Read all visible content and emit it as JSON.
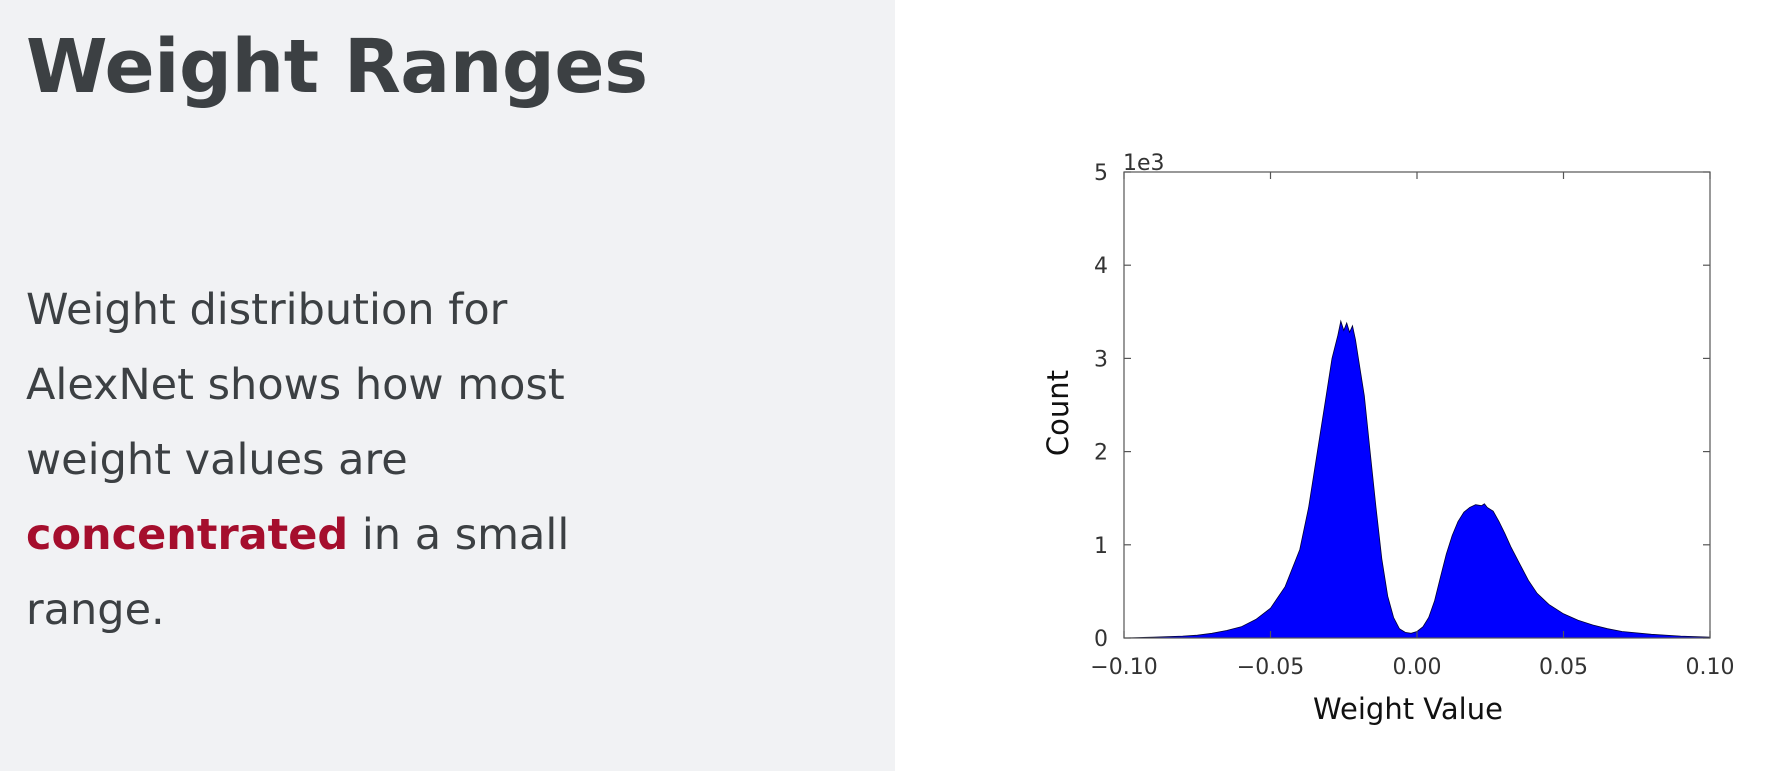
{
  "slide": {
    "title": "Weight Ranges",
    "body_before": "Weight distribution for AlexNet shows how most weight values are",
    "body_highlight": "concentrated",
    "body_after": "in a small range.",
    "highlight_color": "#a50e2d",
    "text_color": "#3c4043",
    "left_panel_color": "#f1f2f4"
  },
  "chart_data": {
    "type": "area",
    "title": "",
    "xlabel": "Weight Value",
    "ylabel": "Count",
    "y_multiplier_label": "1e3",
    "xlim": [
      -0.1,
      0.1
    ],
    "ylim": [
      0,
      5
    ],
    "x_ticks": [
      -0.1,
      -0.05,
      0.0,
      0.05,
      0.1
    ],
    "x_tick_labels": [
      "−0.10",
      "−0.05",
      "0.00",
      "0.05",
      "0.10"
    ],
    "y_ticks": [
      0,
      1,
      2,
      3,
      4,
      5
    ],
    "y_tick_labels": [
      "0",
      "1",
      "2",
      "3",
      "4",
      "5"
    ],
    "fill_color": "#0000ff",
    "grid": false,
    "legend": "none",
    "x": [
      -0.1,
      -0.09,
      -0.08,
      -0.075,
      -0.07,
      -0.065,
      -0.06,
      -0.055,
      -0.05,
      -0.045,
      -0.04,
      -0.037,
      -0.034,
      -0.031,
      -0.029,
      -0.027,
      -0.026,
      -0.025,
      -0.024,
      -0.023,
      -0.022,
      -0.021,
      -0.02,
      -0.018,
      -0.016,
      -0.014,
      -0.012,
      -0.01,
      -0.008,
      -0.006,
      -0.004,
      -0.002,
      0.0,
      0.002,
      0.004,
      0.006,
      0.008,
      0.01,
      0.012,
      0.014,
      0.016,
      0.018,
      0.02,
      0.022,
      0.023,
      0.024,
      0.026,
      0.028,
      0.03,
      0.032,
      0.035,
      0.038,
      0.041,
      0.045,
      0.05,
      0.055,
      0.06,
      0.065,
      0.07,
      0.08,
      0.09,
      0.1
    ],
    "y": [
      0.0,
      0.01,
      0.02,
      0.03,
      0.05,
      0.08,
      0.12,
      0.2,
      0.32,
      0.55,
      0.95,
      1.4,
      2.0,
      2.6,
      3.0,
      3.25,
      3.4,
      3.3,
      3.38,
      3.28,
      3.35,
      3.2,
      3.0,
      2.6,
      2.0,
      1.4,
      0.85,
      0.45,
      0.22,
      0.1,
      0.06,
      0.05,
      0.07,
      0.12,
      0.22,
      0.4,
      0.65,
      0.9,
      1.1,
      1.25,
      1.35,
      1.4,
      1.43,
      1.42,
      1.44,
      1.4,
      1.36,
      1.25,
      1.12,
      0.98,
      0.8,
      0.62,
      0.48,
      0.36,
      0.26,
      0.19,
      0.14,
      0.1,
      0.07,
      0.04,
      0.02,
      0.01
    ]
  }
}
